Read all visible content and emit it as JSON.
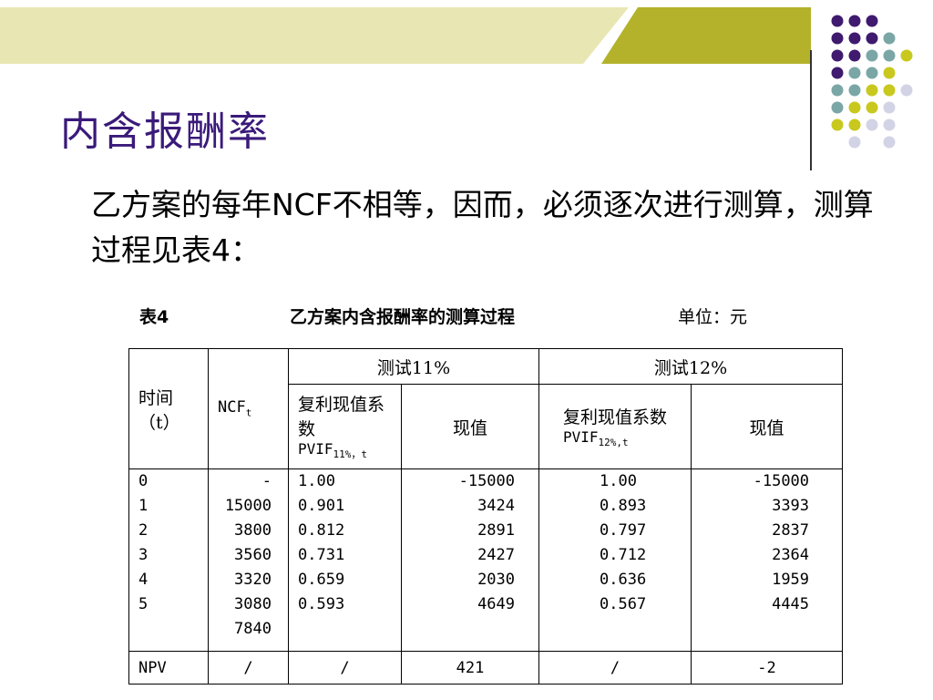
{
  "slide": {
    "title": "内含报酬率",
    "body": "乙方案的每年NCF不相等，因而，必须逐次进行测算，测算过程见表4："
  },
  "caption": {
    "label": "表4",
    "title": "乙方案内含报酬率的测算过程",
    "unit": "单位：元"
  },
  "table": {
    "h_time": "时间",
    "h_time_t": "（t）",
    "h_ncf": "NCF",
    "h_ncf_sub": "t",
    "h_test11": "测试11%",
    "h_test12": "测试12%",
    "h_factor11": "复利现值系数",
    "h_pvif11": "PVIF",
    "h_pvif11_sub": "11%，t",
    "h_pv11": "现值",
    "h_factor12": "复利现值系数",
    "h_pvif12": "PVIF",
    "h_pvif12_sub": "12%,t",
    "h_pv12": "现值",
    "years": [
      "0",
      "1",
      "2",
      "3",
      "4",
      "5",
      ""
    ],
    "ncf": [
      "-",
      "15000",
      "3800",
      "3560",
      "3320",
      "3080",
      "7840"
    ],
    "factor11": [
      "1.00",
      "0.901",
      "0.812",
      "0.731",
      "0.659",
      "0.593"
    ],
    "pv11": [
      "-15000",
      "3424",
      "2891",
      "2427",
      "2030",
      "4649"
    ],
    "factor12": [
      "1.00",
      "0.893",
      "0.797",
      "0.712",
      "0.636",
      "0.567"
    ],
    "pv12": [
      "-15000",
      "3393",
      "2837",
      "2364",
      "1959",
      "4445"
    ],
    "npv_row": {
      "label": "NPV",
      "ncf": "/",
      "factor11": "/",
      "pv11": "421",
      "factor12": "/",
      "pv12": "-2"
    }
  },
  "colors": {
    "title": "#3a1a7a",
    "banner_light": "#e8e7b3",
    "banner_olive": "#b3b22a",
    "dot_purple": "#3f1a6e",
    "dot_teal": "#7aa6a6",
    "dot_yellow": "#c8c81e",
    "dot_lavender": "#d3d3e6"
  }
}
